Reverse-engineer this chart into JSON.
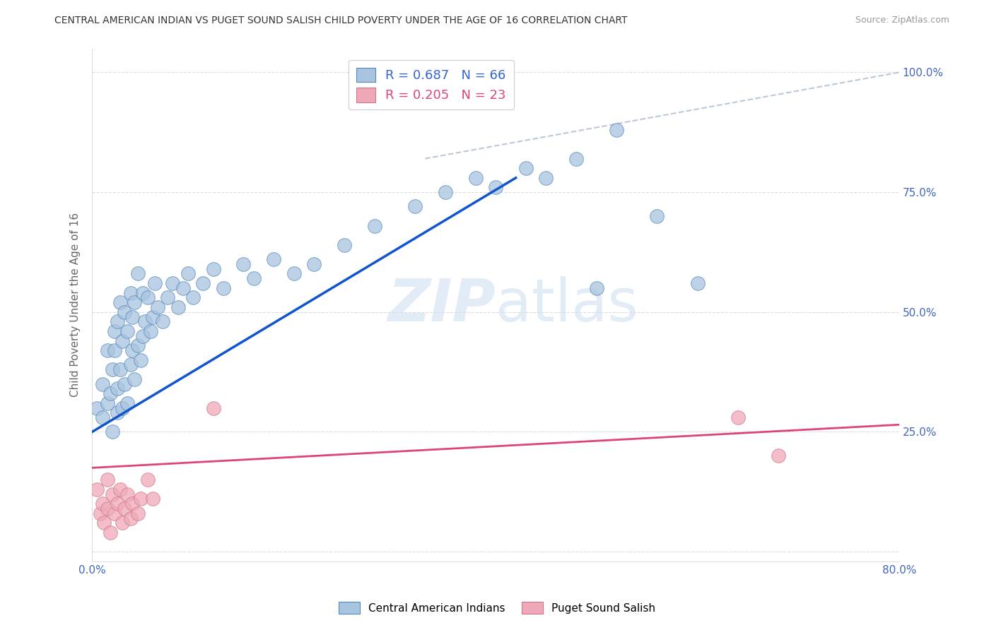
{
  "title": "CENTRAL AMERICAN INDIAN VS PUGET SOUND SALISH CHILD POVERTY UNDER THE AGE OF 16 CORRELATION CHART",
  "source": "Source: ZipAtlas.com",
  "ylabel": "Child Poverty Under the Age of 16",
  "xlim": [
    0.0,
    0.8
  ],
  "ylim": [
    -0.02,
    1.05
  ],
  "xticks": [
    0.0,
    0.2,
    0.4,
    0.6,
    0.8
  ],
  "yticks": [
    0.0,
    0.25,
    0.5,
    0.75,
    1.0
  ],
  "xticklabels": [
    "0.0%",
    "",
    "",
    "",
    "80.0%"
  ],
  "yticklabels_right": [
    "",
    "25.0%",
    "50.0%",
    "75.0%",
    "100.0%"
  ],
  "background_color": "#ffffff",
  "grid_color": "#cccccc",
  "blue_scatter_color": "#a8c4e0",
  "blue_edge_color": "#5588bb",
  "pink_scatter_color": "#f0a8b8",
  "pink_edge_color": "#cc7788",
  "blue_line_color": "#1155cc",
  "pink_line_color": "#dd4477",
  "ref_line_color": "#aabbcc",
  "watermark_color": "#d0e0f0",
  "legend_blue_label": "R = 0.687   N = 66",
  "legend_pink_label": "R = 0.205   N = 23",
  "legend_blue_text_color": "#3366cc",
  "legend_pink_text_color": "#dd4477",
  "title_color": "#333333",
  "source_color": "#999999",
  "tick_color": "#4466bb",
  "ylabel_color": "#666666",
  "blue_scatter_x": [
    0.005,
    0.01,
    0.01,
    0.015,
    0.015,
    0.018,
    0.02,
    0.02,
    0.022,
    0.022,
    0.025,
    0.025,
    0.025,
    0.028,
    0.028,
    0.03,
    0.03,
    0.032,
    0.032,
    0.035,
    0.035,
    0.038,
    0.038,
    0.04,
    0.04,
    0.042,
    0.042,
    0.045,
    0.045,
    0.048,
    0.05,
    0.05,
    0.052,
    0.055,
    0.058,
    0.06,
    0.062,
    0.065,
    0.07,
    0.075,
    0.08,
    0.085,
    0.09,
    0.095,
    0.1,
    0.11,
    0.12,
    0.13,
    0.15,
    0.16,
    0.18,
    0.2,
    0.22,
    0.25,
    0.28,
    0.32,
    0.35,
    0.38,
    0.4,
    0.43,
    0.45,
    0.48,
    0.5,
    0.52,
    0.56,
    0.6
  ],
  "blue_scatter_y": [
    0.3,
    0.28,
    0.35,
    0.31,
    0.42,
    0.33,
    0.25,
    0.38,
    0.42,
    0.46,
    0.29,
    0.34,
    0.48,
    0.38,
    0.52,
    0.3,
    0.44,
    0.35,
    0.5,
    0.31,
    0.46,
    0.39,
    0.54,
    0.42,
    0.49,
    0.36,
    0.52,
    0.43,
    0.58,
    0.4,
    0.45,
    0.54,
    0.48,
    0.53,
    0.46,
    0.49,
    0.56,
    0.51,
    0.48,
    0.53,
    0.56,
    0.51,
    0.55,
    0.58,
    0.53,
    0.56,
    0.59,
    0.55,
    0.6,
    0.57,
    0.61,
    0.58,
    0.6,
    0.64,
    0.68,
    0.72,
    0.75,
    0.78,
    0.76,
    0.8,
    0.78,
    0.82,
    0.55,
    0.88,
    0.7,
    0.56
  ],
  "pink_scatter_x": [
    0.005,
    0.008,
    0.01,
    0.012,
    0.015,
    0.015,
    0.018,
    0.02,
    0.022,
    0.025,
    0.028,
    0.03,
    0.032,
    0.035,
    0.038,
    0.04,
    0.045,
    0.048,
    0.055,
    0.06,
    0.12,
    0.64,
    0.68
  ],
  "pink_scatter_y": [
    0.13,
    0.08,
    0.1,
    0.06,
    0.09,
    0.15,
    0.04,
    0.12,
    0.08,
    0.1,
    0.13,
    0.06,
    0.09,
    0.12,
    0.07,
    0.1,
    0.08,
    0.11,
    0.15,
    0.11,
    0.3,
    0.28,
    0.2
  ],
  "blue_trendline_x0": 0.0,
  "blue_trendline_y0": 0.25,
  "blue_trendline_x1": 0.42,
  "blue_trendline_y1": 0.78,
  "pink_trendline_x0": 0.0,
  "pink_trendline_y0": 0.175,
  "pink_trendline_x1": 0.8,
  "pink_trendline_y1": 0.265,
  "ref_line_x0": 0.33,
  "ref_line_y0": 0.82,
  "ref_line_x1": 0.8,
  "ref_line_y1": 1.0
}
